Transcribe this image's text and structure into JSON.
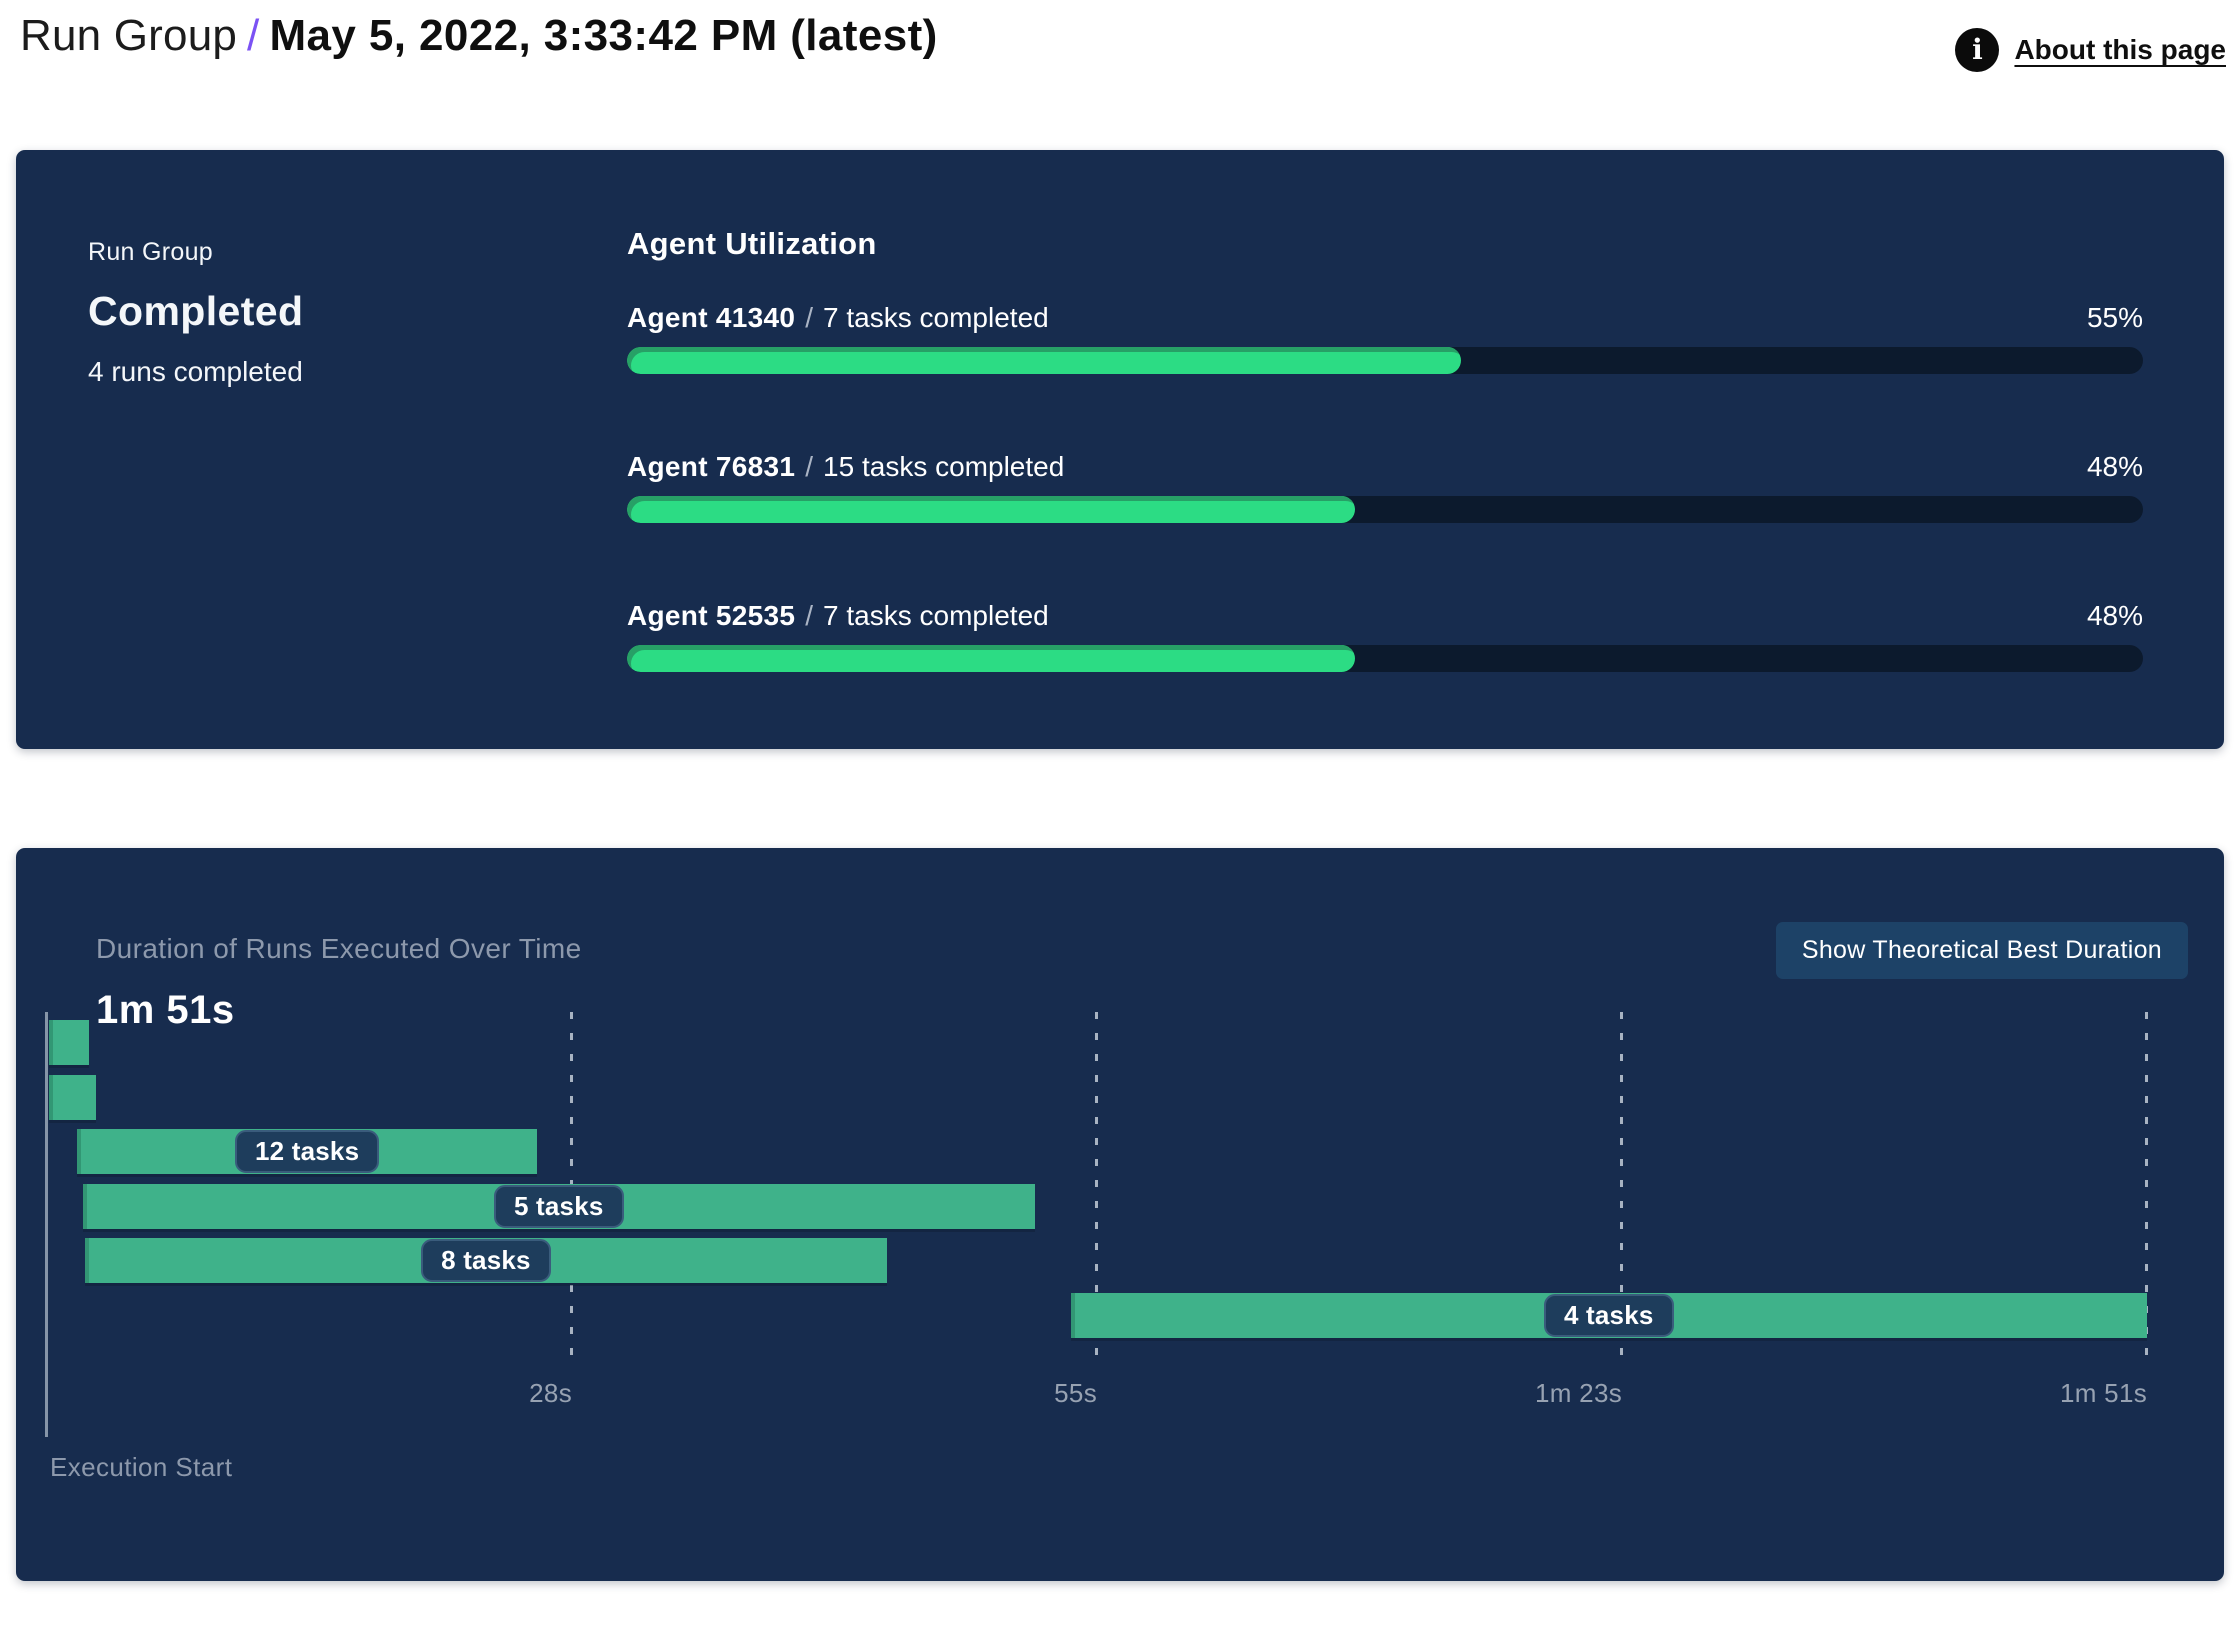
{
  "header": {
    "breadcrumb": "Run Group",
    "separator": "/",
    "title": "May 5, 2022, 3:33:42 PM (latest)",
    "about_link": "About this page"
  },
  "status_card": {
    "label": "Run Group",
    "status": "Completed",
    "runs_summary": "4 runs completed"
  },
  "duration_card": {
    "title": "Duration of Runs Executed Over Time",
    "total_duration": "1m 51s",
    "button_label": "Show Theoretical Best Duration",
    "execution_start_label": "Execution Start"
  },
  "chart_data": [
    {
      "type": "bar",
      "title": "Agent Utilization",
      "orientation": "horizontal",
      "unit": "%",
      "xlim": [
        0,
        100
      ],
      "separator": "/",
      "categories": [
        "Agent 41340",
        "Agent 76831",
        "Agent 52535"
      ],
      "labels": [
        "7 tasks completed",
        "15 tasks completed",
        "7 tasks completed"
      ],
      "values": [
        55,
        48,
        48
      ],
      "percent_labels": [
        "55%",
        "48%",
        "48%"
      ]
    },
    {
      "type": "bar",
      "subtype": "gantt-timeline",
      "title": "Duration of Runs Executed Over Time",
      "total_duration": "1m 51s",
      "xlabel": "Execution Start",
      "axis_max_s": 111,
      "grid": "dashed-vertical",
      "ticks": [
        {
          "label": "28s",
          "s": 27.75
        },
        {
          "label": "55s",
          "s": 55.5
        },
        {
          "label": "1m 23s",
          "s": 83.25
        },
        {
          "label": "1m 51s",
          "s": 111
        }
      ],
      "bars": [
        {
          "label": "",
          "start_s": 0.1,
          "end_s": 2.2
        },
        {
          "label": "",
          "start_s": 0.1,
          "end_s": 2.6
        },
        {
          "label": "12 tasks",
          "start_s": 1.6,
          "end_s": 25.9
        },
        {
          "label": "5 tasks",
          "start_s": 1.9,
          "end_s": 52.2
        },
        {
          "label": "8 tasks",
          "start_s": 2.0,
          "end_s": 44.4
        },
        {
          "label": "4 tasks",
          "start_s": 54.1,
          "end_s": 111
        }
      ]
    }
  ],
  "colors": {
    "card_bg": "#172c4e",
    "accent_purple": "#7b52f4",
    "progress_fill": "#2cdc84",
    "progress_fill_edge": "#27a066",
    "progress_track": "#0c1a2d",
    "gantt_bar": "#3fb28a",
    "pill_bg": "#1e3d5c",
    "muted_text": "#8d99ac",
    "button_bg": "#1d4267"
  }
}
